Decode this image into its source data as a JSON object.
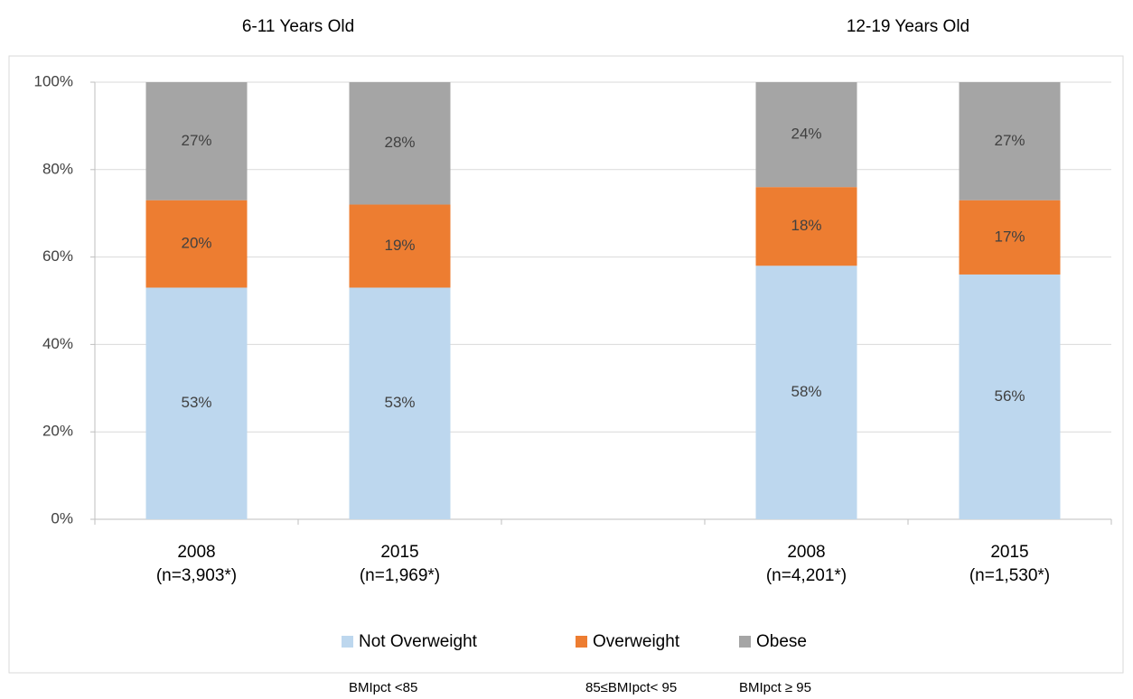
{
  "chart_data": {
    "type": "stacked_bar",
    "group_titles": [
      "6-11 Years Old",
      "12-19 Years Old"
    ],
    "categories": [
      [
        "2008",
        "(n=3,903*)"
      ],
      [
        "2015",
        "(n=1,969*)"
      ],
      null,
      [
        "2008",
        "(n=4,201*)"
      ],
      [
        "2015",
        "(n=1,530*)"
      ]
    ],
    "series": [
      {
        "name": "Not Overweight",
        "color": "#bdd7ee",
        "values": [
          53,
          53,
          null,
          58,
          56
        ],
        "value_labels": [
          "53%",
          "53%",
          null,
          "58%",
          "56%"
        ]
      },
      {
        "name": "Overweight",
        "color": "#ed7d31",
        "values": [
          20,
          19,
          null,
          18,
          17
        ],
        "value_labels": [
          "20%",
          "19%",
          null,
          "18%",
          "17%"
        ]
      },
      {
        "name": "Obese",
        "color": "#a5a5a5",
        "values": [
          27,
          28,
          null,
          24,
          27
        ],
        "value_labels": [
          "27%",
          "28%",
          null,
          "24%",
          "27%"
        ]
      }
    ],
    "ylim": [
      0,
      100
    ],
    "yticks": [
      {
        "value": 0,
        "label": "0%"
      },
      {
        "value": 20,
        "label": "20%"
      },
      {
        "value": 40,
        "label": "40%"
      },
      {
        "value": 60,
        "label": "60%"
      },
      {
        "value": 80,
        "label": "80%"
      },
      {
        "value": 100,
        "label": "100%"
      }
    ],
    "grid": true,
    "legend_position": "bottom",
    "notes": [
      "BMIpct <85",
      "85≤BMIpct< 95",
      "BMIpct ≥ 95"
    ]
  }
}
